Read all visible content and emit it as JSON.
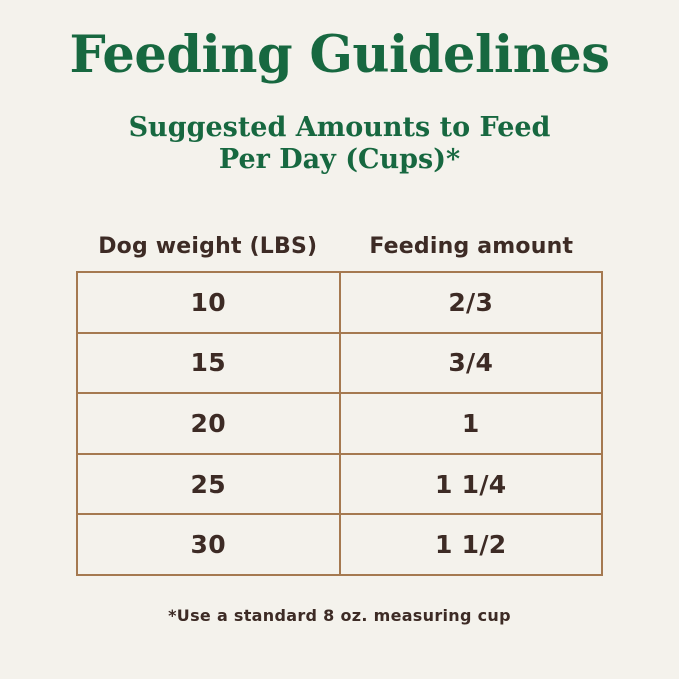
{
  "page": {
    "background_color": "#f4f2ec",
    "accent_green": "#176840",
    "text_color": "#3d2b25",
    "table_border_color": "#a57950",
    "title": "Feeding Guidelines",
    "subtitle_line1": "Suggested Amounts to Feed",
    "subtitle_line2": "Per Day (Cups)*",
    "footnote": "*Use a standard 8 oz. measuring cup"
  },
  "table": {
    "headers": [
      "Dog weight (LBS)",
      "Feeding amount"
    ],
    "rows": [
      [
        "10",
        "2/3"
      ],
      [
        "15",
        "3/4"
      ],
      [
        "20",
        "1"
      ],
      [
        "25",
        "1 1/4"
      ],
      [
        "30",
        "1 1/2"
      ]
    ]
  },
  "chart_data": {
    "type": "table",
    "title": "Feeding Guidelines",
    "subtitle": "Suggested Amounts to Feed Per Day (Cups)*",
    "columns": [
      "Dog weight (LBS)",
      "Feeding amount"
    ],
    "rows": [
      {
        "dog_weight_lbs": 10,
        "feeding_amount_cups": "2/3"
      },
      {
        "dog_weight_lbs": 15,
        "feeding_amount_cups": "3/4"
      },
      {
        "dog_weight_lbs": 20,
        "feeding_amount_cups": "1"
      },
      {
        "dog_weight_lbs": 25,
        "feeding_amount_cups": "1 1/4"
      },
      {
        "dog_weight_lbs": 30,
        "feeding_amount_cups": "1 1/2"
      }
    ],
    "footnote": "*Use a standard 8 oz. measuring cup",
    "legend": false,
    "grid": true,
    "layout_hints": "centered table, equal column widths, headers outside bordered box"
  }
}
